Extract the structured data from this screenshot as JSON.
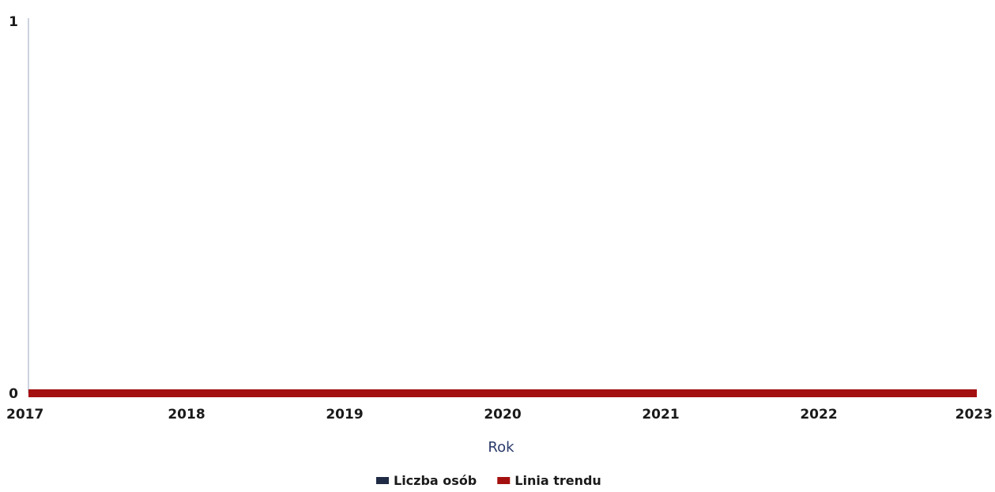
{
  "chart_data": {
    "type": "line",
    "title": "",
    "xlabel": "Rok",
    "ylabel": "",
    "x": [
      2017,
      2018,
      2019,
      2020,
      2021,
      2022,
      2023
    ],
    "xlim": [
      2017,
      2023
    ],
    "ylim": [
      0,
      1
    ],
    "yticks": [
      0,
      1
    ],
    "grid": false,
    "legend_position": "bottom",
    "series": [
      {
        "name": "Liczba osób",
        "color": "#1f2a44",
        "values": [
          0,
          0,
          0,
          0,
          0,
          0,
          0
        ]
      },
      {
        "name": "Linia trendu",
        "color": "#a4100f",
        "values": [
          0,
          0,
          0,
          0,
          0,
          0,
          0
        ]
      }
    ]
  }
}
